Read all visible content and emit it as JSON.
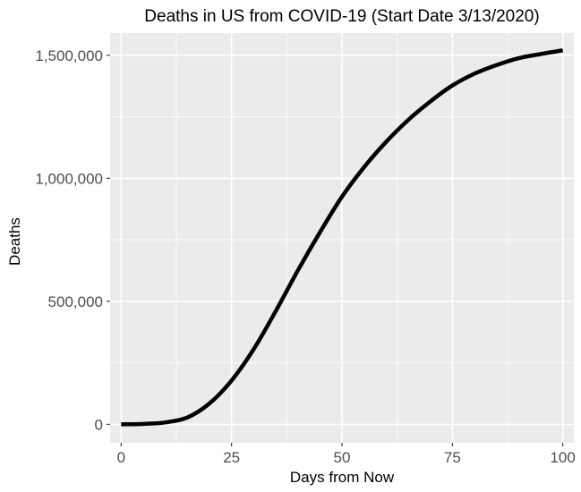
{
  "chart_data": {
    "type": "line",
    "title": "Deaths in US from COVID-19 (Start Date 3/13/2020)",
    "xlabel": "Days from Now",
    "ylabel": "Deaths",
    "xlim": [
      -2.5,
      102.5
    ],
    "ylim": [
      -75000,
      1590000
    ],
    "x_ticks": [
      0,
      25,
      50,
      75,
      100
    ],
    "x_tick_labels": [
      "0",
      "25",
      "50",
      "75",
      "100"
    ],
    "y_ticks": [
      0,
      500000,
      1000000,
      1500000
    ],
    "y_tick_labels": [
      "0",
      "500,000",
      "1,000,000",
      "1,500,000"
    ],
    "grid": true,
    "background_color": "#ebebeb",
    "grid_color": "#ffffff",
    "line_color": "#000000",
    "series": [
      {
        "x": [
          0,
          5,
          10,
          15,
          20,
          25,
          30,
          35,
          40,
          45,
          50,
          55,
          60,
          65,
          70,
          75,
          80,
          85,
          90,
          95,
          100
        ],
        "y": [
          0,
          2000,
          8000,
          28000,
          85000,
          178000,
          305000,
          460000,
          625000,
          780000,
          925000,
          1045000,
          1148000,
          1237000,
          1312000,
          1377000,
          1425000,
          1460000,
          1488000,
          1505000,
          1520000
        ]
      }
    ]
  }
}
